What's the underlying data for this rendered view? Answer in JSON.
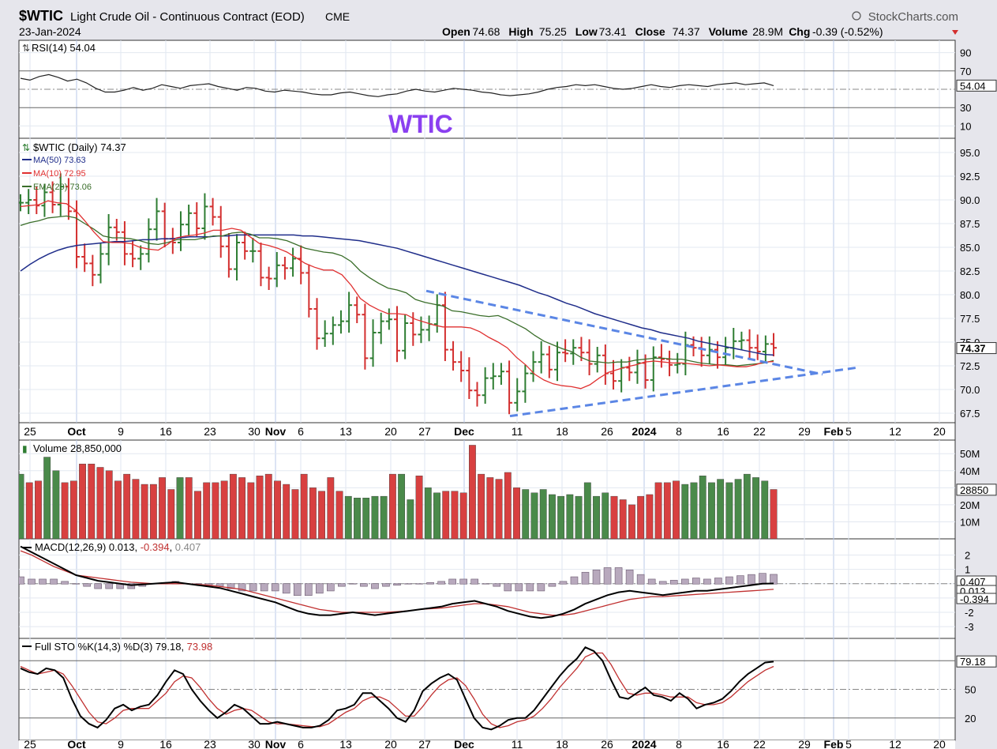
{
  "header": {
    "symbol": "$WTIC",
    "name": "Light Crude Oil - Continuous Contract (EOD)",
    "exchange": "CME",
    "brand": "StockCharts.com",
    "brand_icon": "copyright-icon",
    "date": "23-Jan-2024",
    "quote": [
      {
        "label": "Open",
        "value": "74.68"
      },
      {
        "label": "High",
        "value": "75.25"
      },
      {
        "label": "Low",
        "value": "73.41"
      },
      {
        "label": "Close",
        "value": "74.37"
      },
      {
        "label": "Volume",
        "value": "28.9M"
      },
      {
        "label": "Chg",
        "value": "-0.39 (-0.52%)"
      }
    ],
    "chg_icon": "down-triangle-icon"
  },
  "x_axis": {
    "dates": [
      "25",
      "Oct",
      "9",
      "16",
      "23",
      "30",
      "Nov",
      "6",
      "13",
      "20",
      "27",
      "Dec",
      "11",
      "18",
      "26",
      "2024",
      "8",
      "16",
      "22",
      "29",
      "Feb",
      "5",
      "12",
      "20"
    ],
    "bold": [
      "Oct",
      "Nov",
      "Dec",
      "2024",
      "Feb"
    ]
  },
  "colors": {
    "up": "#2e7d32",
    "down": "#d32f2f",
    "ma50": "#1f2d8a",
    "ma10": "#e03030",
    "ema20": "#3a6e2a",
    "trend": "#5b86e5",
    "watermark": "#8a3ff0",
    "vol_up": "#4a8a4a",
    "vol_down": "#d84040"
  },
  "rsi": {
    "label": "RSI(14) 54.04",
    "value": "54.04",
    "levels": [
      90,
      70,
      30,
      10
    ],
    "watermark": "WTIC",
    "icon": "rsi-icon"
  },
  "chart_data": [
    {
      "type": "line",
      "title": "RSI(14) 54.04",
      "ylim": [
        0,
        100
      ],
      "y_ticks": [
        "90",
        "70",
        "30",
        "10"
      ],
      "values": [
        62,
        60,
        64,
        66,
        63,
        59,
        61,
        57,
        51,
        47,
        47,
        49,
        52,
        49,
        51,
        55,
        53,
        51,
        54,
        55,
        56,
        53,
        51,
        49,
        52,
        51,
        48,
        47,
        49,
        48,
        47,
        45,
        44,
        44,
        46,
        47,
        45,
        43,
        42,
        44,
        45,
        48,
        50,
        48,
        47,
        49,
        51,
        50,
        49,
        47,
        46,
        44,
        43,
        44,
        45,
        47,
        50,
        52,
        53,
        55,
        54,
        55,
        53,
        51,
        50,
        51,
        53,
        55,
        53,
        52,
        54,
        55,
        54,
        53,
        55,
        56,
        57,
        55,
        56,
        57,
        54
      ]
    },
    {
      "type": "ohlc",
      "title": "$WTIC (Daily) 74.37",
      "ylim": [
        66.5,
        96.5
      ],
      "y_ticks": [
        "95.0",
        "92.5",
        "90.0",
        "87.5",
        "85.0",
        "82.5",
        "80.0",
        "77.5",
        "75.0",
        "72.5",
        "70.0",
        "67.5"
      ],
      "last_label": "74.37",
      "legend": [
        "MA(50) 73.63",
        "MA(10) 72.95",
        "EMA(20) 73.06"
      ],
      "close": [
        89.7,
        90.0,
        89.4,
        90.8,
        89.5,
        91.4,
        88.8,
        84.0,
        83.3,
        82.1,
        84.3,
        87.1,
        86.6,
        84.3,
        83.8,
        84.3,
        86.9,
        88.8,
        85.9,
        85.5,
        87.4,
        88.6,
        87.0,
        89.3,
        88.2,
        85.1,
        82.7,
        85.5,
        84.6,
        84.6,
        81.8,
        81.7,
        83.1,
        82.8,
        83.8,
        82.3,
        78.5,
        75.4,
        75.9,
        76.8,
        77.2,
        78.9,
        77.9,
        73.3,
        76.0,
        77.2,
        77.4,
        74.1,
        77.0,
        75.8,
        76.3,
        76.9,
        78.9,
        74.2,
        72.9,
        72.0,
        69.9,
        69.4,
        71.2,
        71.4,
        71.9,
        68.6,
        69.8,
        71.7,
        72.9,
        73.7,
        72.1,
        73.9,
        73.8,
        74.4,
        73.9,
        72.7,
        73.6,
        71.7,
        70.9,
        72.3,
        71.8,
        72.8,
        71.0,
        73.4,
        73.2,
        72.6,
        72.7,
        74.7,
        74.4,
        73.6,
        74.2,
        73.4,
        74.4,
        75.1,
        75.2,
        74.4,
        74.0,
        74.8,
        74.4
      ],
      "ma50": [
        82.5,
        83.2,
        83.8,
        84.3,
        84.7,
        85.0,
        85.2,
        85.3,
        85.4,
        85.5,
        85.6,
        85.6,
        85.7,
        85.8,
        85.8,
        85.9,
        85.9,
        86.0,
        86.1,
        86.1,
        86.1,
        86.2,
        86.2,
        86.3,
        86.3,
        86.3,
        86.3,
        86.3,
        86.3,
        86.3,
        86.2,
        86.2,
        86.1,
        86.0,
        85.9,
        85.8,
        85.7,
        85.5,
        85.3,
        85.1,
        84.9,
        84.6,
        84.3,
        84.0,
        83.7,
        83.4,
        83.1,
        82.8,
        82.5,
        82.2,
        81.9,
        81.6,
        81.3,
        81.0,
        80.6,
        80.2,
        79.9,
        79.5,
        79.1,
        78.8,
        78.4,
        78.0,
        77.7,
        77.4,
        77.1,
        76.8,
        76.5,
        76.3,
        76.0,
        75.8,
        75.6,
        75.4,
        75.1,
        74.9,
        74.7,
        74.5,
        74.3,
        74.1,
        73.9,
        73.7,
        73.63
      ],
      "ma10": [
        89.3,
        89.4,
        89.5,
        89.9,
        89.7,
        89.6,
        88.9,
        87.8,
        86.6,
        85.6,
        85.5,
        85.5,
        85.4,
        85.0,
        84.8,
        84.7,
        85.3,
        86.0,
        86.2,
        86.3,
        86.5,
        86.8,
        86.8,
        87.0,
        86.8,
        86.1,
        85.4,
        85.2,
        84.9,
        84.5,
        83.9,
        83.3,
        82.9,
        82.6,
        82.6,
        82.1,
        81.0,
        79.6,
        78.9,
        78.4,
        78.0,
        78.0,
        77.9,
        77.4,
        77.1,
        76.8,
        76.6,
        76.6,
        76.6,
        76.5,
        76.1,
        75.5,
        75.0,
        74.4,
        73.4,
        72.6,
        71.6,
        71.0,
        70.6,
        70.4,
        70.3,
        70.1,
        70.5,
        71.2,
        71.8,
        72.1,
        72.4,
        72.6,
        72.9,
        73.0,
        72.9,
        72.8,
        72.8,
        72.7,
        72.6,
        72.5,
        72.6,
        72.5,
        72.4,
        72.4,
        72.6,
        72.9,
        72.95
      ],
      "ema20": [
        87.3,
        87.6,
        87.8,
        88.1,
        88.2,
        88.3,
        88.1,
        87.5,
        86.9,
        86.2,
        86.0,
        86.0,
        85.9,
        85.7,
        85.4,
        85.3,
        85.5,
        85.8,
        85.8,
        85.8,
        86.0,
        86.2,
        86.2,
        86.5,
        86.6,
        86.4,
        86.0,
        86.0,
        85.9,
        85.7,
        85.3,
        84.9,
        84.7,
        84.5,
        84.4,
        84.1,
        83.5,
        82.5,
        81.8,
        81.2,
        80.7,
        80.5,
        80.2,
        79.5,
        79.2,
        79.0,
        78.8,
        78.3,
        78.2,
        78.0,
        77.8,
        77.7,
        77.8,
        77.4,
        76.9,
        76.4,
        75.7,
        75.1,
        74.7,
        74.3,
        74.0,
        73.4,
        73.0,
        72.9,
        72.8,
        72.9,
        72.9,
        73.1,
        73.2,
        73.3,
        73.3,
        73.2,
        73.2,
        73.0,
        72.8,
        72.7,
        72.6,
        72.6,
        72.5,
        72.6,
        72.7,
        72.8,
        73.06
      ]
    },
    {
      "type": "bar",
      "title": "Volume 28,850,000",
      "ylim": [
        0,
        58
      ],
      "y_ticks": [
        "50M",
        "40M",
        "30M",
        "20M",
        "10M"
      ],
      "last_label": "28850",
      "values": [
        38,
        33,
        34,
        48,
        40,
        33,
        34,
        44,
        44,
        42,
        40,
        34,
        38,
        35,
        32,
        32,
        36,
        29,
        36,
        36,
        28,
        33,
        33,
        34,
        38,
        36,
        33,
        37,
        38,
        34,
        32,
        29,
        38,
        30,
        28,
        36,
        28,
        25,
        24,
        24,
        25,
        25,
        38,
        38,
        23,
        37,
        30,
        27,
        28,
        28,
        27,
        55,
        38,
        36,
        35,
        39,
        30,
        29,
        27,
        29,
        26,
        25,
        26,
        25,
        33,
        25,
        27,
        25,
        23,
        20,
        25,
        26,
        33,
        33,
        34,
        32,
        33,
        37,
        33,
        35,
        33,
        35,
        38,
        36,
        34,
        29
      ],
      "up": [
        1,
        0,
        0,
        1,
        1,
        0,
        0,
        0,
        0,
        0,
        0,
        0,
        0,
        0,
        0,
        0,
        0,
        0,
        1,
        0,
        0,
        0,
        0,
        0,
        0,
        0,
        0,
        0,
        0,
        0,
        0,
        0,
        0,
        0,
        0,
        0,
        0,
        1,
        1,
        1,
        1,
        1,
        0,
        1,
        1,
        0,
        1,
        1,
        0,
        0,
        0,
        0,
        0,
        0,
        0,
        0,
        0,
        1,
        1,
        1,
        1,
        1,
        1,
        1,
        1,
        1,
        1,
        0,
        0,
        0,
        0,
        0,
        0,
        0,
        0,
        1,
        1,
        1,
        1,
        1,
        1,
        1,
        1,
        1,
        1,
        0
      ]
    },
    {
      "type": "line",
      "title": "MACD(12,26,9) 0.013, -0.394, 0.407",
      "label_parts": [
        "MACD(12,26,9) 0.013, ",
        "-0.394",
        ", ",
        "0.407"
      ],
      "ylim": [
        -3.6,
        2.8
      ],
      "y_ticks": [
        "2",
        "1",
        "0",
        "-1",
        "-2",
        "-3"
      ],
      "last_labels": [
        "0.407",
        "0.013",
        "-0.394"
      ],
      "macd": [
        2.6,
        2.2,
        1.8,
        1.4,
        1.0,
        0.6,
        0.4,
        0.2,
        0.1,
        0.0,
        -0.1,
        -0.05,
        0.0,
        0.05,
        0.1,
        0.0,
        -0.1,
        -0.2,
        -0.3,
        -0.5,
        -0.7,
        -0.9,
        -1.1,
        -1.3,
        -1.6,
        -1.9,
        -2.1,
        -2.2,
        -2.2,
        -2.1,
        -2.0,
        -2.1,
        -2.2,
        -2.1,
        -2.0,
        -1.9,
        -1.8,
        -1.7,
        -1.6,
        -1.4,
        -1.3,
        -1.2,
        -1.4,
        -1.6,
        -1.9,
        -2.1,
        -2.3,
        -2.4,
        -2.3,
        -2.1,
        -1.8,
        -1.4,
        -1.1,
        -0.8,
        -0.6,
        -0.5,
        -0.6,
        -0.7,
        -0.8,
        -0.7,
        -0.6,
        -0.5,
        -0.5,
        -0.4,
        -0.3,
        -0.2,
        -0.1,
        0.0,
        0.013
      ],
      "signal": [
        2.3,
        2.0,
        1.6,
        1.2,
        0.9,
        0.6,
        0.5,
        0.4,
        0.3,
        0.2,
        0.1,
        0.05,
        0.0,
        0.0,
        0.0,
        0.0,
        -0.05,
        -0.1,
        -0.2,
        -0.3,
        -0.4,
        -0.6,
        -0.8,
        -1.0,
        -1.2,
        -1.4,
        -1.6,
        -1.8,
        -1.9,
        -2.0,
        -2.0,
        -2.0,
        -2.0,
        -2.0,
        -1.95,
        -1.9,
        -1.8,
        -1.75,
        -1.7,
        -1.6,
        -1.5,
        -1.4,
        -1.4,
        -1.5,
        -1.6,
        -1.8,
        -2.0,
        -2.1,
        -2.2,
        -2.2,
        -2.1,
        -1.9,
        -1.7,
        -1.5,
        -1.3,
        -1.1,
        -1.0,
        -0.9,
        -0.9,
        -0.85,
        -0.8,
        -0.75,
        -0.7,
        -0.65,
        -0.6,
        -0.55,
        -0.5,
        -0.45,
        -0.394
      ],
      "hist": [
        0.3,
        0.2,
        0.2,
        0.2,
        0.1,
        0.0,
        -0.1,
        -0.2,
        -0.2,
        -0.2,
        -0.2,
        -0.1,
        0.0,
        0.05,
        0.1,
        0.0,
        -0.05,
        -0.1,
        -0.1,
        -0.2,
        -0.3,
        -0.3,
        -0.3,
        -0.3,
        -0.4,
        -0.5,
        -0.5,
        -0.4,
        -0.3,
        -0.1,
        0.0,
        -0.1,
        -0.2,
        -0.1,
        -0.05,
        0.0,
        0.0,
        0.05,
        0.1,
        0.2,
        0.2,
        0.2,
        0.0,
        -0.1,
        -0.3,
        -0.3,
        -0.3,
        -0.3,
        -0.1,
        0.1,
        0.3,
        0.5,
        0.6,
        0.7,
        0.7,
        0.6,
        0.4,
        0.2,
        0.1,
        0.15,
        0.2,
        0.25,
        0.2,
        0.25,
        0.3,
        0.35,
        0.4,
        0.45,
        0.407
      ]
    },
    {
      "type": "line",
      "title": "Full STO %K(14,3) %D(3) 79.18, 73.98",
      "label_parts": [
        "Full STO %K(14,3) %D(3) 79.18, ",
        "73.98"
      ],
      "ylim": [
        0,
        100
      ],
      "y_ticks": [
        "50",
        "20"
      ],
      "levels": [
        80,
        50,
        20
      ],
      "last_label": "79.18",
      "k": [
        72,
        68,
        66,
        72,
        70,
        62,
        40,
        22,
        14,
        10,
        18,
        30,
        34,
        28,
        32,
        34,
        44,
        58,
        70,
        66,
        50,
        38,
        28,
        20,
        26,
        34,
        30,
        22,
        14,
        14,
        16,
        14,
        12,
        10,
        10,
        12,
        18,
        28,
        30,
        34,
        46,
        46,
        38,
        30,
        20,
        16,
        28,
        48,
        56,
        62,
        66,
        60,
        40,
        20,
        10,
        8,
        12,
        18,
        20,
        20,
        28,
        40,
        52,
        64,
        74,
        82,
        94,
        90,
        80,
        60,
        42,
        40,
        46,
        52,
        44,
        42,
        38,
        46,
        40,
        30,
        34,
        36,
        40,
        48,
        58,
        66,
        72,
        78,
        79
      ],
      "d": [
        74,
        70,
        66,
        68,
        70,
        66,
        54,
        40,
        26,
        16,
        14,
        20,
        28,
        30,
        30,
        30,
        38,
        46,
        58,
        64,
        62,
        52,
        40,
        30,
        24,
        28,
        30,
        28,
        22,
        16,
        14,
        14,
        13,
        12,
        11,
        11,
        14,
        20,
        26,
        30,
        38,
        42,
        42,
        38,
        30,
        22,
        22,
        32,
        44,
        54,
        60,
        62,
        54,
        40,
        24,
        14,
        10,
        12,
        16,
        18,
        22,
        30,
        40,
        52,
        62,
        72,
        84,
        88,
        88,
        76,
        60,
        46,
        44,
        46,
        46,
        44,
        42,
        42,
        42,
        36,
        34,
        34,
        36,
        42,
        50,
        58,
        64,
        70,
        74
      ]
    }
  ]
}
